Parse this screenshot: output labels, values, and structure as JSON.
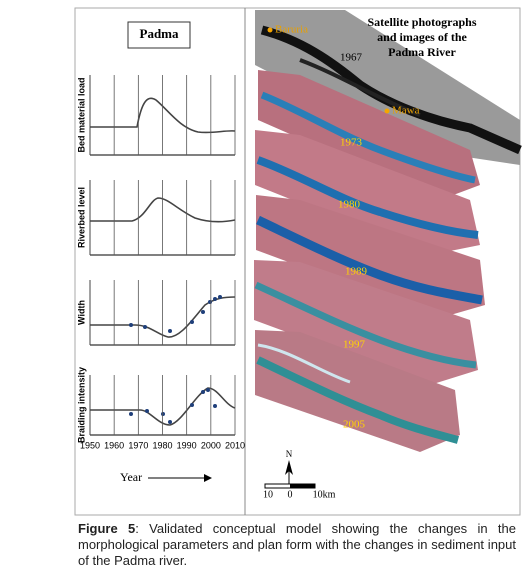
{
  "panel": {
    "title": "Padma",
    "charts": [
      {
        "ylabel": "Bed material load"
      },
      {
        "ylabel": "Riverbed level"
      },
      {
        "ylabel": "Width"
      },
      {
        "ylabel": "Braiding intensity"
      }
    ],
    "xticks": [
      1950,
      1960,
      1970,
      1980,
      1990,
      2000,
      2010
    ],
    "xlim": [
      1950,
      2010
    ],
    "xlabel": "Year"
  },
  "map": {
    "title": [
      "Satellite photographs",
      "and images of the",
      "Padma River"
    ],
    "places": [
      "Baruria",
      "Mawa"
    ],
    "years": [
      "1967",
      "1973",
      "1980",
      "1989",
      "1997",
      "2005"
    ],
    "north": "N",
    "scale": [
      "10",
      "0",
      "10km"
    ]
  },
  "caption": {
    "label": "Figure 5",
    "text": ": Validated conceptual model showing the changes in the morphological parameters and plan form with the changes in sediment input of the Padma river."
  }
}
